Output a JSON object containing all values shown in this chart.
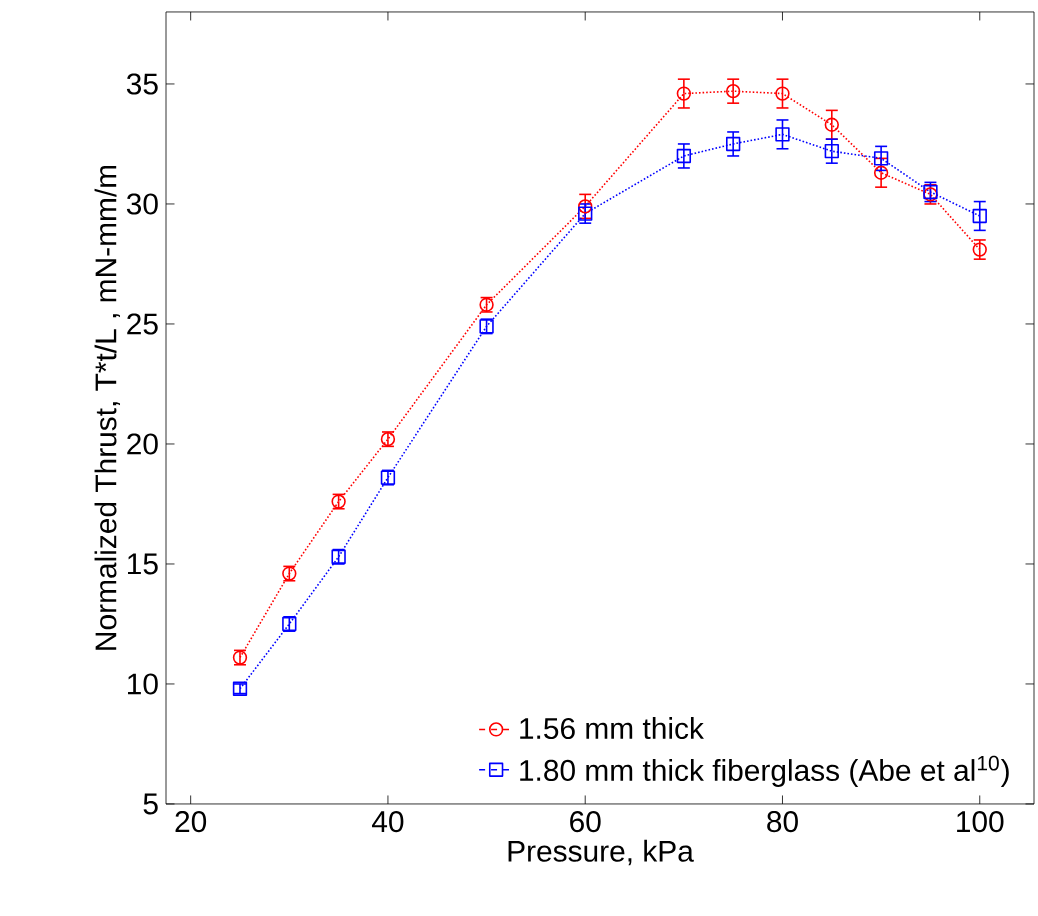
{
  "chart_data": {
    "type": "line",
    "xlabel": "Pressure, kPa",
    "ylabel": "Normalized Thrust, T*t/L , mN-mm/m",
    "x": [
      25,
      30,
      35,
      40,
      50,
      60,
      70,
      75,
      80,
      85,
      90,
      95,
      100
    ],
    "series": [
      {
        "name": "1.56 mm thick",
        "color": "#ff0000",
        "marker": "circle",
        "values": [
          11.1,
          14.6,
          17.6,
          20.2,
          25.8,
          29.9,
          34.6,
          34.7,
          34.6,
          33.3,
          31.3,
          30.4,
          28.1
        ],
        "errors": [
          0.3,
          0.3,
          0.3,
          0.3,
          0.3,
          0.5,
          0.6,
          0.5,
          0.6,
          0.6,
          0.6,
          0.4,
          0.4
        ]
      },
      {
        "name": "1.80 mm thick fiberglass (Abe et al$^{10}$)",
        "color": "#0000ff",
        "marker": "square",
        "values": [
          9.8,
          12.5,
          15.3,
          18.6,
          24.9,
          29.6,
          32.0,
          32.5,
          32.9,
          32.2,
          31.9,
          30.5,
          29.5
        ],
        "errors": [
          0.2,
          0.3,
          0.3,
          0.3,
          0.3,
          0.4,
          0.5,
          0.5,
          0.6,
          0.5,
          0.5,
          0.4,
          0.6
        ]
      }
    ],
    "xlim": [
      17.5,
      105.5
    ],
    "ylim": [
      5,
      38
    ],
    "xticks": [
      20,
      40,
      60,
      80,
      100
    ],
    "yticks": [
      5,
      10,
      15,
      20,
      25,
      30,
      35
    ],
    "legend": "bottom right",
    "line_style": "dotted"
  }
}
